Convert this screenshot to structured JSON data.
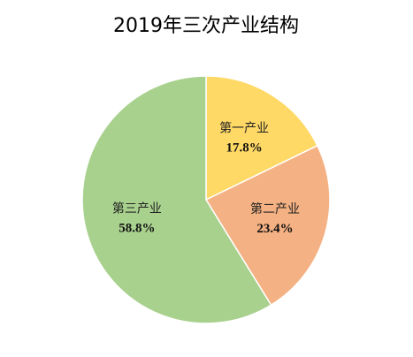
{
  "chart_data": {
    "type": "pie",
    "title": "2019年三次产业结构",
    "categories": [
      "第一产业",
      "第二产业",
      "第三产业"
    ],
    "values": [
      17.8,
      23.4,
      58.8
    ],
    "value_labels": [
      "17.8%",
      "23.4%",
      "58.8%"
    ],
    "colors": [
      "#ffd966",
      "#f4b183",
      "#a9d18e"
    ]
  }
}
